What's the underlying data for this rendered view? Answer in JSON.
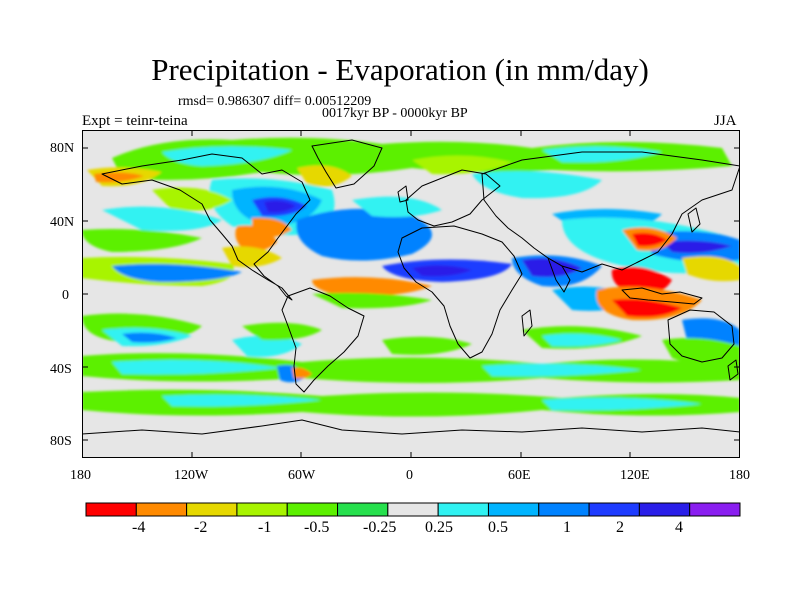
{
  "title": "Precipitation - Evaporation (in mm/day)",
  "stats_line": "rmsd= 0.986307 diff= 0.00512209",
  "periods_line": "0017kyr BP - 0000kyr BP",
  "experiment_label": "Expt = teinr-teina",
  "season_label": "JJA",
  "axes": {
    "lat_ticks": [
      "80N",
      "40N",
      "0",
      "40S",
      "80S"
    ],
    "lon_ticks": [
      "180",
      "120W",
      "60W",
      "0",
      "60E",
      "120E",
      "180"
    ]
  },
  "colorbar": {
    "colors": [
      "#ff0000",
      "#ff8a00",
      "#e6d800",
      "#a8f400",
      "#5cf000",
      "#26e04d",
      "#e6e6e6",
      "#30f2f2",
      "#00b4ff",
      "#0082ff",
      "#1e3cff",
      "#2a1ee8",
      "#8a1ef0"
    ],
    "labels": [
      "-4",
      "-2",
      "-1",
      "-0.5",
      "-0.25",
      "0.25",
      "0.5",
      "1",
      "2",
      "4"
    ]
  },
  "land_outline_color": "#000000",
  "ocean_neutral_color": "#e6e6e6"
}
